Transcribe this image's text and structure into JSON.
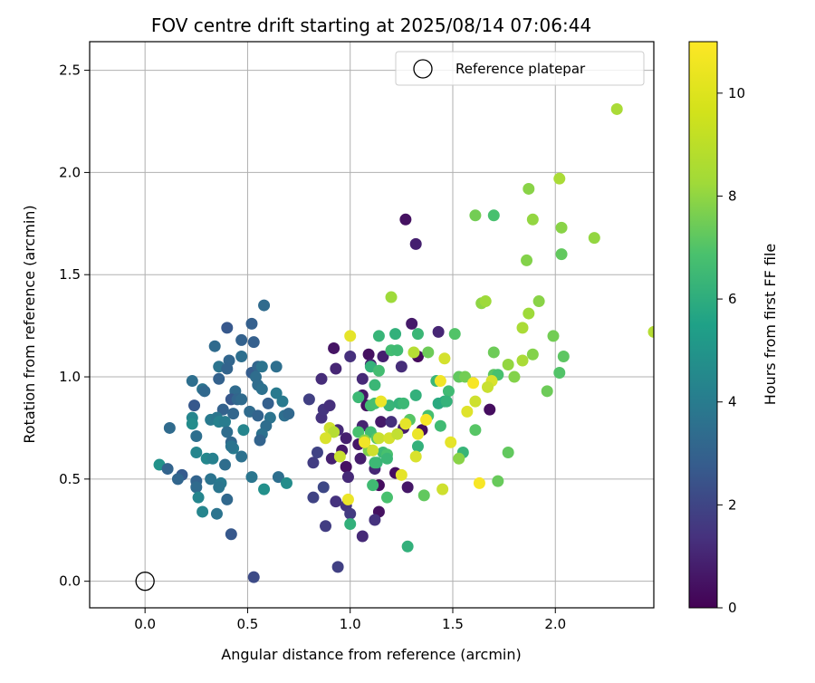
{
  "chart_data": {
    "type": "scatter",
    "title": "FOV centre drift starting at 2025/08/14 07:06:44",
    "xlabel": "Angular distance from reference (arcmin)",
    "ylabel": "Rotation from reference (arcmin)",
    "xlim": [
      -0.27,
      2.48
    ],
    "ylim": [
      -0.13,
      2.64
    ],
    "xticks": [
      0.0,
      0.5,
      1.0,
      1.5,
      2.0
    ],
    "xtick_labels": [
      "0.0",
      "0.5",
      "1.0",
      "1.5",
      "2.0"
    ],
    "yticks": [
      0.0,
      0.5,
      1.0,
      1.5,
      2.0,
      2.5
    ],
    "ytick_labels": [
      "0.0",
      "0.5",
      "1.0",
      "1.5",
      "2.0",
      "2.5"
    ],
    "grid": true,
    "legend": {
      "placement": "upper right",
      "entries": [
        {
          "label": "Reference platepar",
          "marker": "open-circle"
        }
      ]
    },
    "reference_point": {
      "x": 0.0,
      "y": 0.0
    },
    "colorbar": {
      "label": "Hours from first FF file",
      "colormap": "viridis",
      "range": [
        0,
        11
      ],
      "ticks": [
        0,
        2,
        4,
        6,
        8,
        10
      ],
      "tick_labels": [
        "0",
        "2",
        "4",
        "6",
        "8",
        "10"
      ]
    },
    "point_colors": {
      "h0": "#440154",
      "h1": "#46327e",
      "h2": "#365c8d",
      "h3": "#277f8e",
      "h4": "#1fa187",
      "h5": "#4ac16d",
      "h6": "#a0da39",
      "h7": "#fde725"
    },
    "points": [
      {
        "x": 1.27,
        "y": 1.77,
        "h": 0.5
      },
      {
        "x": 1.32,
        "y": 1.65,
        "h": 1.0
      },
      {
        "x": 1.43,
        "y": 1.22,
        "h": 1.2
      },
      {
        "x": 1.3,
        "y": 1.26,
        "h": 0.8
      },
      {
        "x": 1.33,
        "y": 1.1,
        "h": 0.3
      },
      {
        "x": 1.09,
        "y": 1.11,
        "h": 0.5
      },
      {
        "x": 1.1,
        "y": 1.06,
        "h": 1.0
      },
      {
        "x": 1.0,
        "y": 1.1,
        "h": 1.5
      },
      {
        "x": 0.92,
        "y": 1.14,
        "h": 0.6
      },
      {
        "x": 0.93,
        "y": 1.04,
        "h": 1.2
      },
      {
        "x": 0.86,
        "y": 0.99,
        "h": 1.4
      },
      {
        "x": 1.06,
        "y": 0.99,
        "h": 1.3
      },
      {
        "x": 1.16,
        "y": 1.1,
        "h": 1.0
      },
      {
        "x": 1.25,
        "y": 1.05,
        "h": 1.4
      },
      {
        "x": 1.06,
        "y": 0.91,
        "h": 0.7
      },
      {
        "x": 1.08,
        "y": 0.86,
        "h": 0.5
      },
      {
        "x": 1.15,
        "y": 0.78,
        "h": 0.8
      },
      {
        "x": 1.2,
        "y": 0.78,
        "h": 1.5
      },
      {
        "x": 1.35,
        "y": 0.74,
        "h": 0.4
      },
      {
        "x": 1.26,
        "y": 0.75,
        "h": 0.9
      },
      {
        "x": 1.68,
        "y": 0.84,
        "h": 0.4
      },
      {
        "x": 1.06,
        "y": 0.76,
        "h": 1.1
      },
      {
        "x": 1.04,
        "y": 0.67,
        "h": 0.7
      },
      {
        "x": 0.98,
        "y": 0.7,
        "h": 1.0
      },
      {
        "x": 0.94,
        "y": 0.74,
        "h": 1.3
      },
      {
        "x": 0.86,
        "y": 0.8,
        "h": 1.6
      },
      {
        "x": 0.87,
        "y": 0.84,
        "h": 1.7
      },
      {
        "x": 0.8,
        "y": 0.89,
        "h": 2.1
      },
      {
        "x": 0.9,
        "y": 0.86,
        "h": 1.5
      },
      {
        "x": 0.96,
        "y": 0.64,
        "h": 0.8
      },
      {
        "x": 0.98,
        "y": 0.56,
        "h": 0.5
      },
      {
        "x": 0.99,
        "y": 0.51,
        "h": 1.3
      },
      {
        "x": 1.05,
        "y": 0.6,
        "h": 0.9
      },
      {
        "x": 1.22,
        "y": 0.53,
        "h": 0.4
      },
      {
        "x": 1.28,
        "y": 0.46,
        "h": 0.7
      },
      {
        "x": 1.14,
        "y": 0.47,
        "h": 0.4
      },
      {
        "x": 1.12,
        "y": 0.55,
        "h": 1.2
      },
      {
        "x": 0.93,
        "y": 0.39,
        "h": 1.6
      },
      {
        "x": 0.98,
        "y": 0.37,
        "h": 1.7
      },
      {
        "x": 1.0,
        "y": 0.33,
        "h": 1.9
      },
      {
        "x": 1.14,
        "y": 0.34,
        "h": 0.5
      },
      {
        "x": 1.12,
        "y": 0.3,
        "h": 1.6
      },
      {
        "x": 1.06,
        "y": 0.22,
        "h": 1.3
      },
      {
        "x": 0.88,
        "y": 0.27,
        "h": 2.0
      },
      {
        "x": 0.82,
        "y": 0.41,
        "h": 2.2
      },
      {
        "x": 0.87,
        "y": 0.46,
        "h": 2.4
      },
      {
        "x": 0.94,
        "y": 0.07,
        "h": 2.1
      },
      {
        "x": 0.82,
        "y": 0.58,
        "h": 2.0
      },
      {
        "x": 0.84,
        "y": 0.63,
        "h": 2.2
      },
      {
        "x": 0.91,
        "y": 0.6,
        "h": 1.0
      },
      {
        "x": 0.53,
        "y": 0.02,
        "h": 2.5
      },
      {
        "x": 0.58,
        "y": 1.35,
        "h": 3.8
      },
      {
        "x": 0.52,
        "y": 1.26,
        "h": 3.3
      },
      {
        "x": 0.4,
        "y": 1.24,
        "h": 3.0
      },
      {
        "x": 0.47,
        "y": 1.18,
        "h": 3.4
      },
      {
        "x": 0.53,
        "y": 1.17,
        "h": 3.3
      },
      {
        "x": 0.34,
        "y": 1.15,
        "h": 3.8
      },
      {
        "x": 0.47,
        "y": 1.1,
        "h": 4.0
      },
      {
        "x": 0.41,
        "y": 1.08,
        "h": 3.6
      },
      {
        "x": 0.36,
        "y": 1.05,
        "h": 4.2
      },
      {
        "x": 0.4,
        "y": 1.04,
        "h": 3.5
      },
      {
        "x": 0.52,
        "y": 1.02,
        "h": 3.2
      },
      {
        "x": 0.55,
        "y": 1.05,
        "h": 3.6
      },
      {
        "x": 0.57,
        "y": 1.05,
        "h": 4.2
      },
      {
        "x": 0.64,
        "y": 1.05,
        "h": 4.0
      },
      {
        "x": 0.54,
        "y": 1.0,
        "h": 3.9
      },
      {
        "x": 0.36,
        "y": 0.99,
        "h": 3.4
      },
      {
        "x": 0.23,
        "y": 0.98,
        "h": 4.0
      },
      {
        "x": 0.28,
        "y": 0.94,
        "h": 4.2
      },
      {
        "x": 0.29,
        "y": 0.93,
        "h": 3.7
      },
      {
        "x": 0.44,
        "y": 0.93,
        "h": 3.8
      },
      {
        "x": 0.55,
        "y": 0.96,
        "h": 3.9
      },
      {
        "x": 0.57,
        "y": 0.94,
        "h": 4.1
      },
      {
        "x": 0.64,
        "y": 0.92,
        "h": 4.5
      },
      {
        "x": 0.42,
        "y": 0.89,
        "h": 3.0
      },
      {
        "x": 0.45,
        "y": 0.89,
        "h": 3.6
      },
      {
        "x": 0.47,
        "y": 0.89,
        "h": 3.8
      },
      {
        "x": 0.6,
        "y": 0.87,
        "h": 3.3
      },
      {
        "x": 0.67,
        "y": 0.88,
        "h": 4.5
      },
      {
        "x": 0.24,
        "y": 0.86,
        "h": 3.0
      },
      {
        "x": 0.38,
        "y": 0.84,
        "h": 3.4
      },
      {
        "x": 0.43,
        "y": 0.82,
        "h": 3.6
      },
      {
        "x": 0.51,
        "y": 0.83,
        "h": 3.8
      },
      {
        "x": 0.55,
        "y": 0.81,
        "h": 3.5
      },
      {
        "x": 0.61,
        "y": 0.8,
        "h": 4.2
      },
      {
        "x": 0.68,
        "y": 0.81,
        "h": 4.0
      },
      {
        "x": 0.7,
        "y": 0.82,
        "h": 3.7
      },
      {
        "x": 0.23,
        "y": 0.8,
        "h": 5.0
      },
      {
        "x": 0.32,
        "y": 0.79,
        "h": 4.5
      },
      {
        "x": 0.35,
        "y": 0.8,
        "h": 4.3
      },
      {
        "x": 0.23,
        "y": 0.77,
        "h": 5.3
      },
      {
        "x": 0.36,
        "y": 0.78,
        "h": 4.8
      },
      {
        "x": 0.39,
        "y": 0.78,
        "h": 4.6
      },
      {
        "x": 0.59,
        "y": 0.76,
        "h": 3.9
      },
      {
        "x": 0.48,
        "y": 0.74,
        "h": 5.0
      },
      {
        "x": 0.4,
        "y": 0.73,
        "h": 3.9
      },
      {
        "x": 0.25,
        "y": 0.71,
        "h": 4.0
      },
      {
        "x": 0.57,
        "y": 0.72,
        "h": 4.1
      },
      {
        "x": 0.56,
        "y": 0.69,
        "h": 3.5
      },
      {
        "x": 0.42,
        "y": 0.68,
        "h": 3.7
      },
      {
        "x": 0.43,
        "y": 0.65,
        "h": 4.5
      },
      {
        "x": 0.42,
        "y": 0.66,
        "h": 4.2
      },
      {
        "x": 0.25,
        "y": 0.63,
        "h": 5.0
      },
      {
        "x": 0.3,
        "y": 0.6,
        "h": 5.1
      },
      {
        "x": 0.33,
        "y": 0.6,
        "h": 4.8
      },
      {
        "x": 0.47,
        "y": 0.61,
        "h": 4.1
      },
      {
        "x": 0.39,
        "y": 0.57,
        "h": 3.9
      },
      {
        "x": 0.07,
        "y": 0.57,
        "h": 5.6
      },
      {
        "x": 0.11,
        "y": 0.55,
        "h": 3.5
      },
      {
        "x": 0.18,
        "y": 0.52,
        "h": 3.1
      },
      {
        "x": 0.16,
        "y": 0.5,
        "h": 3.6
      },
      {
        "x": 0.25,
        "y": 0.49,
        "h": 3.5
      },
      {
        "x": 0.32,
        "y": 0.5,
        "h": 4.2
      },
      {
        "x": 0.37,
        "y": 0.48,
        "h": 4.5
      },
      {
        "x": 0.25,
        "y": 0.46,
        "h": 3.8
      },
      {
        "x": 0.36,
        "y": 0.46,
        "h": 4.3
      },
      {
        "x": 0.52,
        "y": 0.51,
        "h": 4.3
      },
      {
        "x": 0.65,
        "y": 0.51,
        "h": 4.0
      },
      {
        "x": 0.69,
        "y": 0.48,
        "h": 5.3
      },
      {
        "x": 0.26,
        "y": 0.41,
        "h": 5.0
      },
      {
        "x": 0.4,
        "y": 0.4,
        "h": 3.7
      },
      {
        "x": 0.58,
        "y": 0.45,
        "h": 5.5
      },
      {
        "x": 0.28,
        "y": 0.34,
        "h": 5.0
      },
      {
        "x": 0.35,
        "y": 0.33,
        "h": 4.2
      },
      {
        "x": 0.42,
        "y": 0.23,
        "h": 3.0
      },
      {
        "x": 0.12,
        "y": 0.75,
        "h": 3.8
      },
      {
        "x": 1.2,
        "y": 1.39,
        "h": 9.4
      },
      {
        "x": 1.14,
        "y": 1.2,
        "h": 7.2
      },
      {
        "x": 1.22,
        "y": 1.21,
        "h": 7.0
      },
      {
        "x": 1.33,
        "y": 1.21,
        "h": 7.3
      },
      {
        "x": 1.51,
        "y": 1.21,
        "h": 8.0
      },
      {
        "x": 1.2,
        "y": 1.13,
        "h": 7.6
      },
      {
        "x": 1.23,
        "y": 1.13,
        "h": 7.5
      },
      {
        "x": 1.38,
        "y": 1.12,
        "h": 8.5
      },
      {
        "x": 1.31,
        "y": 1.12,
        "h": 9.8
      },
      {
        "x": 1.1,
        "y": 1.05,
        "h": 7.1
      },
      {
        "x": 1.14,
        "y": 1.03,
        "h": 7.6
      },
      {
        "x": 1.42,
        "y": 0.98,
        "h": 7.3
      },
      {
        "x": 1.53,
        "y": 1.0,
        "h": 8.3
      },
      {
        "x": 1.56,
        "y": 1.0,
        "h": 8.6
      },
      {
        "x": 1.12,
        "y": 0.96,
        "h": 7.3
      },
      {
        "x": 1.1,
        "y": 0.86,
        "h": 7.6
      },
      {
        "x": 1.12,
        "y": 0.87,
        "h": 7.7
      },
      {
        "x": 1.19,
        "y": 0.86,
        "h": 7.2
      },
      {
        "x": 1.24,
        "y": 0.87,
        "h": 7.1
      },
      {
        "x": 1.26,
        "y": 0.87,
        "h": 7.4
      },
      {
        "x": 1.32,
        "y": 0.91,
        "h": 7.0
      },
      {
        "x": 1.48,
        "y": 0.93,
        "h": 7.5
      },
      {
        "x": 1.46,
        "y": 0.88,
        "h": 6.8
      },
      {
        "x": 1.43,
        "y": 0.87,
        "h": 6.7
      },
      {
        "x": 1.47,
        "y": 0.88,
        "h": 7.1
      },
      {
        "x": 1.04,
        "y": 0.9,
        "h": 7.4
      },
      {
        "x": 1.38,
        "y": 0.81,
        "h": 7.7
      },
      {
        "x": 1.29,
        "y": 0.79,
        "h": 8.1
      },
      {
        "x": 1.44,
        "y": 0.76,
        "h": 7.5
      },
      {
        "x": 1.1,
        "y": 0.73,
        "h": 7.6
      },
      {
        "x": 1.04,
        "y": 0.73,
        "h": 7.8
      },
      {
        "x": 1.13,
        "y": 0.7,
        "h": 8.1
      },
      {
        "x": 1.07,
        "y": 0.69,
        "h": 9.0
      },
      {
        "x": 1.09,
        "y": 0.64,
        "h": 8.8
      },
      {
        "x": 1.16,
        "y": 0.63,
        "h": 7.4
      },
      {
        "x": 1.18,
        "y": 0.62,
        "h": 7.8
      },
      {
        "x": 1.13,
        "y": 0.58,
        "h": 7.2
      },
      {
        "x": 1.12,
        "y": 0.58,
        "h": 7.4
      },
      {
        "x": 1.33,
        "y": 0.66,
        "h": 7.0
      },
      {
        "x": 1.55,
        "y": 0.63,
        "h": 7.2
      },
      {
        "x": 1.53,
        "y": 0.6,
        "h": 9.0
      },
      {
        "x": 1.18,
        "y": 0.6,
        "h": 7.3
      },
      {
        "x": 1.11,
        "y": 0.47,
        "h": 7.5
      },
      {
        "x": 1.18,
        "y": 0.41,
        "h": 7.8
      },
      {
        "x": 1.36,
        "y": 0.42,
        "h": 8.3
      },
      {
        "x": 1.0,
        "y": 0.28,
        "h": 7.0
      },
      {
        "x": 1.28,
        "y": 0.17,
        "h": 7.0
      },
      {
        "x": 1.72,
        "y": 0.49,
        "h": 8.4
      },
      {
        "x": 1.77,
        "y": 0.63,
        "h": 8.3
      },
      {
        "x": 1.61,
        "y": 0.74,
        "h": 8.1
      },
      {
        "x": 1.7,
        "y": 1.01,
        "h": 8.2
      },
      {
        "x": 1.72,
        "y": 1.01,
        "h": 7.8
      },
      {
        "x": 1.7,
        "y": 1.12,
        "h": 8.5
      },
      {
        "x": 1.8,
        "y": 1.0,
        "h": 8.9
      },
      {
        "x": 1.77,
        "y": 1.06,
        "h": 9.2
      },
      {
        "x": 1.84,
        "y": 1.08,
        "h": 9.6
      },
      {
        "x": 1.89,
        "y": 1.11,
        "h": 8.9
      },
      {
        "x": 1.84,
        "y": 1.24,
        "h": 9.6
      },
      {
        "x": 1.87,
        "y": 1.31,
        "h": 9.4
      },
      {
        "x": 1.92,
        "y": 1.37,
        "h": 9.0
      },
      {
        "x": 1.64,
        "y": 1.36,
        "h": 9.1
      },
      {
        "x": 1.66,
        "y": 1.37,
        "h": 9.4
      },
      {
        "x": 1.86,
        "y": 1.57,
        "h": 8.9
      },
      {
        "x": 1.61,
        "y": 1.79,
        "h": 8.6
      },
      {
        "x": 1.7,
        "y": 1.79,
        "h": 7.8
      },
      {
        "x": 1.87,
        "y": 1.92,
        "h": 9.0
      },
      {
        "x": 1.89,
        "y": 1.77,
        "h": 9.2
      },
      {
        "x": 2.02,
        "y": 1.97,
        "h": 9.6
      },
      {
        "x": 2.03,
        "y": 1.73,
        "h": 9.0
      },
      {
        "x": 2.19,
        "y": 1.68,
        "h": 9.2
      },
      {
        "x": 2.03,
        "y": 1.6,
        "h": 8.3
      },
      {
        "x": 1.99,
        "y": 1.2,
        "h": 8.6
      },
      {
        "x": 2.04,
        "y": 1.1,
        "h": 8.2
      },
      {
        "x": 2.02,
        "y": 1.02,
        "h": 8.0
      },
      {
        "x": 1.96,
        "y": 0.93,
        "h": 8.5
      },
      {
        "x": 2.3,
        "y": 2.31,
        "h": 9.6
      },
      {
        "x": 2.48,
        "y": 1.22,
        "h": 9.8
      },
      {
        "x": 1.0,
        "y": 1.2,
        "h": 10.6
      },
      {
        "x": 1.46,
        "y": 1.09,
        "h": 10.3
      },
      {
        "x": 1.44,
        "y": 0.98,
        "h": 10.8
      },
      {
        "x": 1.6,
        "y": 0.97,
        "h": 10.9
      },
      {
        "x": 1.69,
        "y": 0.98,
        "h": 10.4
      },
      {
        "x": 1.67,
        "y": 0.95,
        "h": 10.1
      },
      {
        "x": 1.15,
        "y": 0.88,
        "h": 10.7
      },
      {
        "x": 1.61,
        "y": 0.88,
        "h": 10.2
      },
      {
        "x": 1.57,
        "y": 0.83,
        "h": 10.5
      },
      {
        "x": 1.37,
        "y": 0.79,
        "h": 10.9
      },
      {
        "x": 1.27,
        "y": 0.77,
        "h": 10.6
      },
      {
        "x": 0.9,
        "y": 0.75,
        "h": 10.2
      },
      {
        "x": 0.92,
        "y": 0.73,
        "h": 9.8
      },
      {
        "x": 0.88,
        "y": 0.7,
        "h": 10.4
      },
      {
        "x": 1.33,
        "y": 0.72,
        "h": 10.7
      },
      {
        "x": 1.14,
        "y": 0.7,
        "h": 10.1
      },
      {
        "x": 1.19,
        "y": 0.7,
        "h": 10.3
      },
      {
        "x": 1.23,
        "y": 0.72,
        "h": 10.0
      },
      {
        "x": 1.49,
        "y": 0.68,
        "h": 10.6
      },
      {
        "x": 1.07,
        "y": 0.68,
        "h": 10.8
      },
      {
        "x": 1.11,
        "y": 0.64,
        "h": 10.2
      },
      {
        "x": 0.95,
        "y": 0.61,
        "h": 10.1
      },
      {
        "x": 1.32,
        "y": 0.61,
        "h": 10.4
      },
      {
        "x": 1.25,
        "y": 0.52,
        "h": 10.6
      },
      {
        "x": 1.63,
        "y": 0.48,
        "h": 10.9
      },
      {
        "x": 1.45,
        "y": 0.45,
        "h": 10.2
      },
      {
        "x": 0.99,
        "y": 0.4,
        "h": 10.7
      }
    ]
  }
}
